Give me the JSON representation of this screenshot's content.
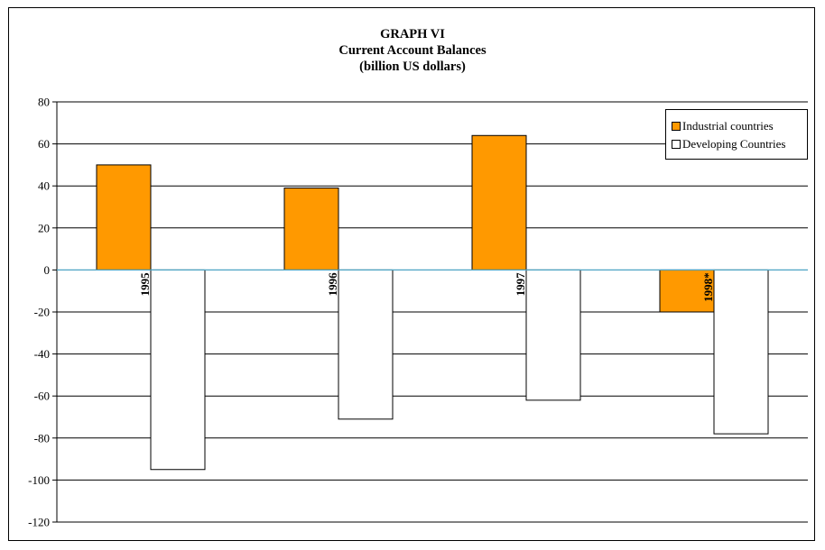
{
  "title_lines": [
    "GRAPH VI",
    "Current Account Balances",
    "(billion US dollars)"
  ],
  "colors": {
    "industrial": "#FF9900",
    "developing": "#FFFFFF",
    "zero_line": "#4BA3C3",
    "grid": "#000000"
  },
  "chart_data": {
    "type": "bar",
    "title": "GRAPH VI Current Account Balances (billion US dollars)",
    "xlabel": "",
    "ylabel": "",
    "categories": [
      "1995",
      "1996",
      "1997",
      "1998*"
    ],
    "series": [
      {
        "name": "Industrial countries",
        "values": [
          50,
          39,
          64,
          -20
        ]
      },
      {
        "name": "Developing Countries",
        "values": [
          -95,
          -71,
          -62,
          -78
        ]
      }
    ],
    "ylim": [
      -120,
      80
    ],
    "yticks": [
      80,
      60,
      40,
      20,
      0,
      -20,
      -40,
      -60,
      -80,
      -100,
      -120
    ],
    "grid": true,
    "legend_position": "top-right"
  }
}
